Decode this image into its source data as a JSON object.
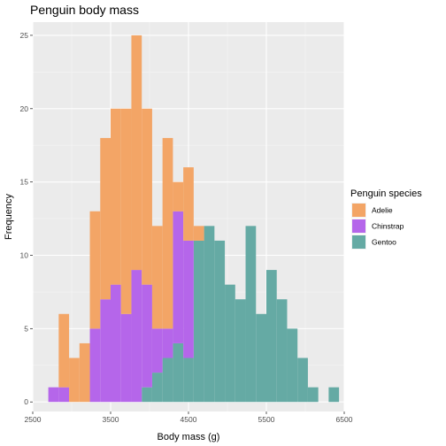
{
  "chart_data": {
    "type": "bar",
    "subtype": "stacked-histogram",
    "title": "Penguin body mass",
    "xlabel": "Body mass (g)",
    "ylabel": "Frequency",
    "xlim": [
      2500,
      6500
    ],
    "ylim": [
      0,
      25
    ],
    "x_ticks": [
      2500,
      3500,
      4500,
      5500,
      6500
    ],
    "y_ticks": [
      0,
      5,
      10,
      15,
      20,
      25
    ],
    "bin_width": 133.3,
    "bin_starts": [
      2700,
      2833.3,
      2966.7,
      3100,
      3233.3,
      3366.7,
      3500,
      3633.3,
      3766.7,
      3900,
      4033.3,
      4166.7,
      4300,
      4433.3,
      4566.7,
      4700,
      4833.3,
      4966.7,
      5100,
      5233.3,
      5366.7,
      5500,
      5633.3,
      5766.7,
      5900,
      6033.3,
      6166.7,
      6300
    ],
    "grid": true,
    "legend_title": "Penguin species",
    "legend_position": "right",
    "series": [
      {
        "name": "Gentoo",
        "color": "#65aaa4",
        "values": [
          0,
          0,
          0,
          0,
          0,
          0,
          0,
          0,
          0,
          1,
          2,
          3,
          4,
          3,
          11,
          12,
          11,
          8,
          7,
          12,
          6,
          9,
          7,
          5,
          3,
          1,
          0,
          1
        ]
      },
      {
        "name": "Chinstrap",
        "color": "#b566ea",
        "values": [
          1,
          1,
          0,
          0,
          5,
          7,
          8,
          6,
          9,
          7,
          3,
          2,
          9,
          8,
          0,
          0,
          0,
          0,
          0,
          0,
          0,
          0,
          0,
          0,
          0,
          0,
          0,
          0
        ]
      },
      {
        "name": "Adelie",
        "color": "#f3a566",
        "values": [
          0,
          5,
          3,
          4,
          8,
          11,
          12,
          14,
          16,
          12,
          7,
          13,
          2,
          5,
          1,
          0,
          0,
          0,
          0,
          0,
          0,
          0,
          0,
          0,
          0,
          0,
          0,
          0
        ]
      }
    ],
    "legend_order": [
      "Adelie",
      "Chinstrap",
      "Gentoo"
    ]
  }
}
